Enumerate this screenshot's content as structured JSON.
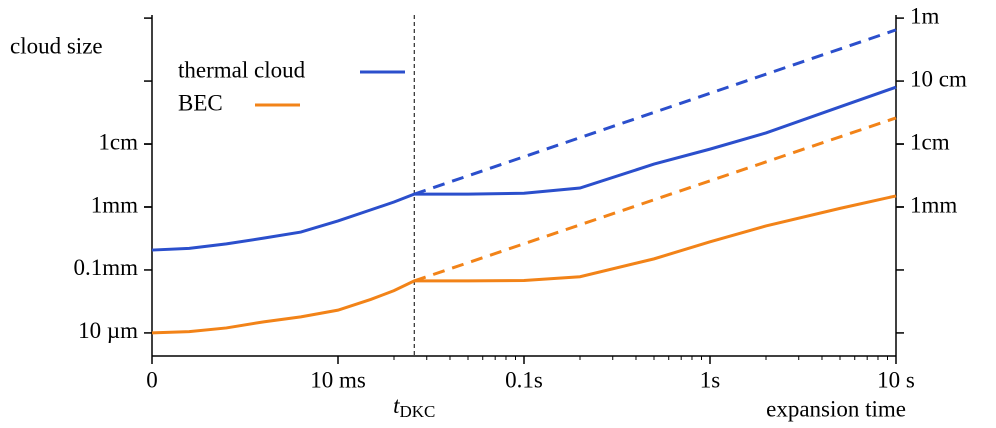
{
  "chart_data": {
    "type": "line",
    "y_label": "cloud size",
    "x_label": "expansion time",
    "x_scale": "symlog",
    "x_linthresh": 0.01,
    "y_scale": "log",
    "xlim": [
      0,
      10
    ],
    "ylim": [
      4.3e-06,
      1.12
    ],
    "xticks": [
      0,
      {
        "value": 0.01,
        "label": "10 ms"
      },
      {
        "value": 0.1,
        "label": "0.1s"
      },
      {
        "value": 1,
        "label": "1s"
      },
      {
        "value": 10,
        "label": "10 s"
      }
    ],
    "xminorticks": [
      0.02,
      0.03,
      0.04,
      0.05,
      0.06,
      0.07,
      0.08,
      0.09,
      0.2,
      0.3,
      0.4,
      0.5,
      0.6,
      0.7,
      0.8,
      0.9,
      2,
      3,
      4,
      5,
      6,
      7,
      8,
      9
    ],
    "yticks": [
      {
        "value": 1e-05,
        "label": "10 µm"
      },
      {
        "value": 0.0001,
        "label": "0.1mm"
      },
      {
        "value": 0.001,
        "label": "1mm"
      },
      {
        "value": 0.01,
        "label": "1cm"
      }
    ],
    "y2ticks": [
      {
        "value": 0.001,
        "label": "1mm"
      },
      {
        "value": 0.01,
        "label": "1cm"
      },
      {
        "value": 0.1,
        "label": "10 cm"
      },
      {
        "value": 1,
        "label": "1m"
      }
    ],
    "marker_line": {
      "x": 0.0257,
      "label": "t",
      "label_sub": "DKC"
    },
    "x": [
      0,
      0.002,
      0.004,
      0.006,
      0.008,
      0.01,
      0.015,
      0.02,
      0.0257,
      0.05,
      0.1,
      0.2,
      0.5,
      1,
      2,
      5,
      10
    ],
    "series": [
      {
        "name": "thermal cloud",
        "color": "#2b4fcc",
        "values": [
          0.000207,
          0.00022,
          0.00026,
          0.00032,
          0.0004,
          0.0006,
          0.0009,
          0.0012,
          0.0016,
          0.0016,
          0.00165,
          0.002,
          0.0048,
          0.0083,
          0.015,
          0.039,
          0.08
        ],
        "extrapolation": {
          "x": [
            0.0257,
            10
          ],
          "values": [
            0.0016,
            0.65
          ]
        }
      },
      {
        "name": "BEC",
        "color": "#f28318",
        "values": [
          1e-05,
          1.05e-05,
          1.2e-05,
          1.5e-05,
          1.8e-05,
          2.3e-05,
          3.4e-05,
          4.7e-05,
          6.7e-05,
          6.7e-05,
          6.8e-05,
          7.8e-05,
          0.00015,
          0.00028,
          0.0005,
          0.00095,
          0.0015
        ],
        "extrapolation": {
          "x": [
            0.0257,
            10
          ],
          "values": [
            6.7e-05,
            0.026
          ]
        }
      }
    ]
  }
}
